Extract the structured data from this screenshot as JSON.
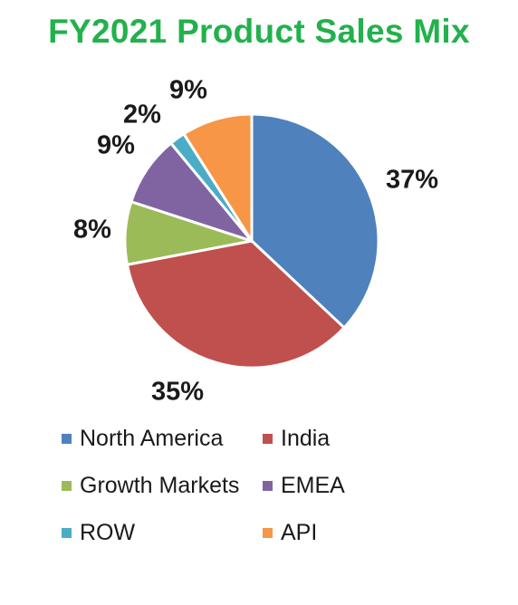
{
  "chart_data": {
    "type": "pie",
    "title": "FY2021 Product Sales Mix",
    "title_color": "#22b14c",
    "legend_position": "bottom",
    "slices": [
      {
        "name": "North America",
        "value": 37,
        "label": "37%",
        "color": "#4f81bd"
      },
      {
        "name": "India",
        "value": 35,
        "label": "35%",
        "color": "#c0504d"
      },
      {
        "name": "Growth Markets",
        "value": 8,
        "label": "8%",
        "color": "#9bbb59"
      },
      {
        "name": "EMEA",
        "value": 9,
        "label": "9%",
        "color": "#8064a2"
      },
      {
        "name": "ROW",
        "value": 2,
        "label": "2%",
        "color": "#4bacc6"
      },
      {
        "name": "API",
        "value": 9,
        "label": "9%",
        "color": "#f79646"
      }
    ]
  }
}
